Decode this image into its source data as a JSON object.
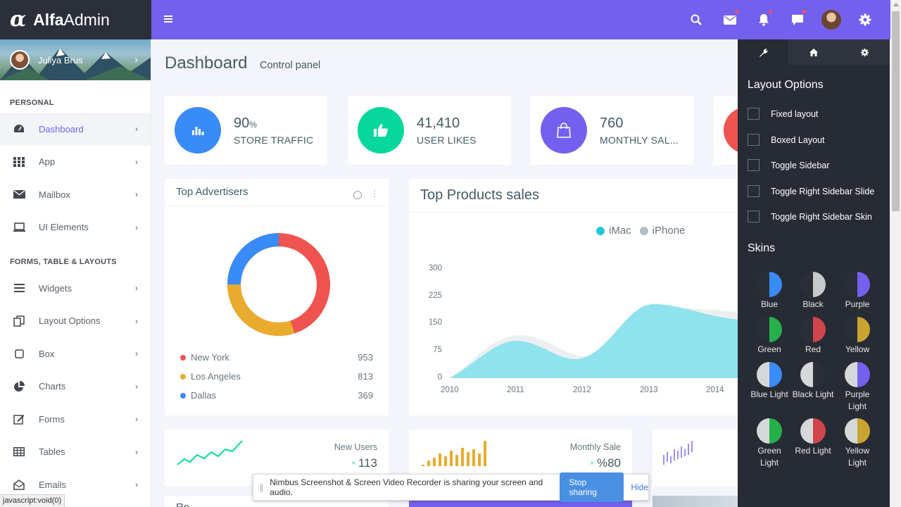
{
  "brand": {
    "logo_mark": "α",
    "name_bold": "Alfa",
    "name_light": "Admin"
  },
  "user": {
    "name": "Juliya Brus"
  },
  "sidebar": {
    "section1": "PERSONAL",
    "section2": "FORMS, TABLE & LAYOUTS",
    "items": [
      {
        "label": "Dashboard",
        "icon": "dashboard-icon"
      },
      {
        "label": "App",
        "icon": "apps-grid-icon"
      },
      {
        "label": "Mailbox",
        "icon": "envelope-icon"
      },
      {
        "label": "UI Elements",
        "icon": "laptop-icon"
      },
      {
        "label": "Widgets",
        "icon": "bars-icon"
      },
      {
        "label": "Layout Options",
        "icon": "copy-icon"
      },
      {
        "label": "Box",
        "icon": "square-icon"
      },
      {
        "label": "Charts",
        "icon": "pie-chart-icon"
      },
      {
        "label": "Forms",
        "icon": "edit-icon"
      },
      {
        "label": "Tables",
        "icon": "table-icon"
      },
      {
        "label": "Emails",
        "icon": "envelope-open-icon"
      }
    ]
  },
  "header": {
    "title": "Dashboard",
    "subtitle": "Control panel"
  },
  "stats": [
    {
      "value": "90",
      "unit": "%",
      "label": "STORE TRAFFIC",
      "color": "#398bf7",
      "icon": "bar-chart-icon"
    },
    {
      "value": "41,410",
      "unit": "",
      "label": "USER LIKES",
      "color": "#06d79c",
      "icon": "thumbs-up-icon"
    },
    {
      "value": "760",
      "unit": "",
      "label": "MONTHLY SAL...",
      "color": "#7460ee",
      "icon": "shopping-bag-icon"
    }
  ],
  "advertisers": {
    "title": "Top Advertisers",
    "rows": [
      {
        "city": "New York",
        "value": "953",
        "color": "#ef5350"
      },
      {
        "city": "Los Angeles",
        "value": "813",
        "color": "#e9ab2e"
      },
      {
        "city": "Dallas",
        "value": "369",
        "color": "#398bf7"
      }
    ]
  },
  "products": {
    "title": "Top Products sales",
    "legend": [
      {
        "name": "iMac",
        "color": "#26c6da"
      },
      {
        "name": "iPhone",
        "color": "#b4bcc8"
      }
    ],
    "y_ticks": [
      "300",
      "225",
      "150",
      "75",
      "0"
    ],
    "x_ticks": [
      "2010",
      "2011",
      "2012",
      "2013",
      "2014"
    ]
  },
  "mini": {
    "new_users": {
      "label": "New Users",
      "value": "113",
      "arrow": "^"
    },
    "monthly_sale": {
      "label": "Monthly Sale",
      "value": "%80",
      "arrow": "^"
    }
  },
  "settings_panel": {
    "layout_heading": "Layout Options",
    "options": [
      "Fixed layout",
      "Boxed Layout",
      "Toggle Sidebar",
      "Toggle Right Sidebar Slide",
      "Toggle Right Sidebar Skin"
    ],
    "skins_heading": "Skins",
    "skins": [
      {
        "label": "Blue",
        "left": "#2a2e37",
        "right": "#398bf7"
      },
      {
        "label": "Black",
        "left": "#2a2e37",
        "right": "#c8c9cb"
      },
      {
        "label": "Purple",
        "left": "#2a2e37",
        "right": "#7460ee"
      },
      {
        "label": "Green",
        "left": "#2a2e37",
        "right": "#26b04a"
      },
      {
        "label": "Red",
        "left": "#2a2e37",
        "right": "#d0454b"
      },
      {
        "label": "Yellow",
        "left": "#2a2e37",
        "right": "#c9a430"
      },
      {
        "label": "Blue Light",
        "left": "#d6d7d9",
        "right": "#398bf7"
      },
      {
        "label": "Black Light",
        "left": "#d6d7d9",
        "right": "#2a2e37"
      },
      {
        "label": "Purple Light",
        "left": "#d6d7d9",
        "right": "#7460ee"
      },
      {
        "label": "Green Light",
        "left": "#d6d7d9",
        "right": "#26b04a"
      },
      {
        "label": "Red Light",
        "left": "#d6d7d9",
        "right": "#d0454b"
      },
      {
        "label": "Yellow Light",
        "left": "#d6d7d9",
        "right": "#c9a430"
      }
    ]
  },
  "share_bar": {
    "message": "Nimbus Screenshot & Screen Video Recorder is sharing your screen and audio.",
    "stop": "Stop sharing",
    "hide": "Hide"
  },
  "status_url": "javascript:void(0)",
  "bottom_partial": "Ro"
}
